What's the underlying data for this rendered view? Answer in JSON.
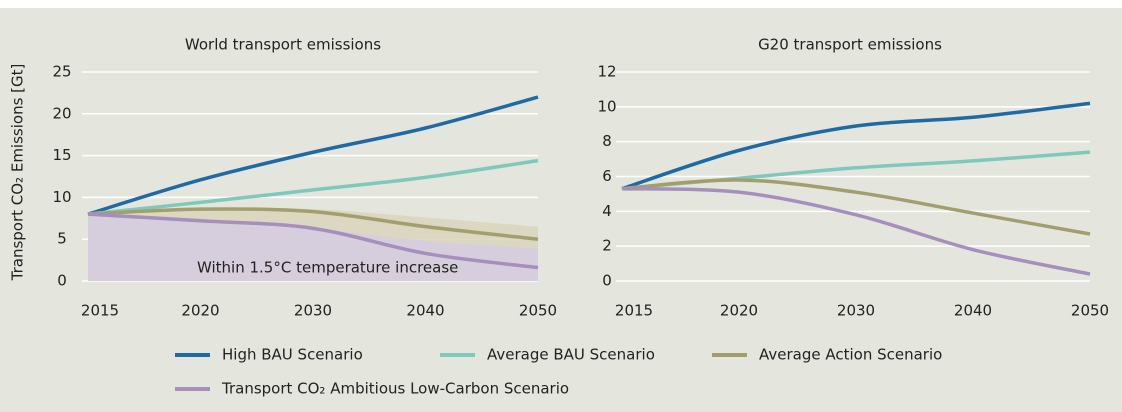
{
  "chart_data": [
    {
      "type": "line",
      "title": "World transport emissions",
      "y_label": "Transport CO₂ Emissions [Gt]",
      "categories": [
        "2015",
        "2020",
        "2030",
        "2040",
        "2050"
      ],
      "ylim": [
        0,
        25
      ],
      "yticks": [
        0,
        5,
        10,
        15,
        20,
        25
      ],
      "grid": true,
      "annotation": "Within 1.5°C temperature increase",
      "areas": [
        {
          "color": "#d9d3bb",
          "values": [
            8,
            8.7,
            8.6,
            7.6,
            6.5
          ]
        },
        {
          "color": "#d6cde2",
          "values": [
            8,
            7.2,
            6.3,
            4.8,
            3.9
          ]
        }
      ],
      "series": [
        {
          "name": "High BAU Scenario",
          "color": "#1f6aa5",
          "values": [
            8,
            12.1,
            15.4,
            18.3,
            22
          ]
        },
        {
          "name": "Average BAU Scenario",
          "color": "#7ec8bc",
          "values": [
            8,
            9.4,
            10.9,
            12.4,
            14.4
          ]
        },
        {
          "name": "Average Action Scenario",
          "color": "#a39e6e",
          "values": [
            8,
            8.6,
            8.3,
            6.5,
            5
          ]
        },
        {
          "name": "Transport CO₂ Ambitious Low-Carbon Scenario",
          "color": "#a58fbc",
          "values": [
            8,
            7.2,
            6.3,
            3.3,
            1.6
          ]
        }
      ]
    },
    {
      "type": "line",
      "title": "G20 transport emissions",
      "categories": [
        "2015",
        "2020",
        "2030",
        "2040",
        "2050"
      ],
      "ylim": [
        0,
        12
      ],
      "yticks": [
        0,
        2,
        4,
        6,
        8,
        10,
        12
      ],
      "grid": true,
      "series": [
        {
          "color": "#1f6aa5",
          "values": [
            5.3,
            7.5,
            8.9,
            9.4,
            10.2
          ]
        },
        {
          "color": "#7ec8bc",
          "values": [
            5.3,
            5.9,
            6.5,
            6.9,
            7.4
          ]
        },
        {
          "color": "#a39e6e",
          "values": [
            5.3,
            5.8,
            5.1,
            3.9,
            2.7
          ]
        },
        {
          "color": "#a58fbc",
          "values": [
            5.3,
            5.1,
            3.8,
            1.8,
            0.4
          ]
        }
      ]
    }
  ]
}
